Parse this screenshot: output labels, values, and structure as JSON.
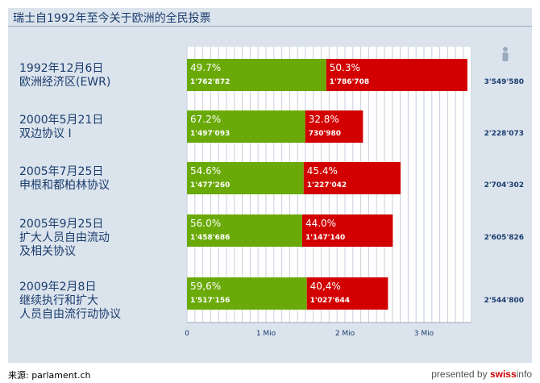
{
  "title": "瑞士自1992年至今关于欧洲的全民投票",
  "source": "来源: parlament.ch",
  "brand": {
    "prefix": "presented by ",
    "swiss": "swiss",
    "info": "info"
  },
  "colors": {
    "yes": "#6aaa08",
    "no": "#d20000",
    "panel": "#dbe3ec",
    "text": "#1a3d6e"
  },
  "icons": {
    "total": "person-icon"
  },
  "chart_data": {
    "type": "bar",
    "stacked": true,
    "orientation": "horizontal",
    "grid": true,
    "xlim": [
      0,
      3.6
    ],
    "x_ticks": [
      {
        "value": 0,
        "label": "0"
      },
      {
        "value": 1,
        "label": "1 Mio"
      },
      {
        "value": 2,
        "label": "2 Mio"
      },
      {
        "value": 3,
        "label": "3 Mio"
      }
    ],
    "votes": [
      {
        "lines": [
          "1992年12月6日",
          "欧洲经济区(EWR)"
        ],
        "yes_pct": "49.7%",
        "yes_count": "1'762'872",
        "yes_value": 1762872,
        "no_pct": "50.3%",
        "no_count": "1'786'708",
        "no_value": 1786708,
        "total": "3'549'580"
      },
      {
        "lines": [
          "2000年5月21日",
          "双边协议 I"
        ],
        "yes_pct": "67.2%",
        "yes_count": "1'497'093",
        "yes_value": 1497093,
        "no_pct": "32.8%",
        "no_count": "730'980",
        "no_value": 730980,
        "total": "2'228'073"
      },
      {
        "lines": [
          "2005年7月25日",
          "申根和都柏林协议"
        ],
        "yes_pct": "54.6%",
        "yes_count": "1'477'260",
        "yes_value": 1477260,
        "no_pct": "45.4%",
        "no_count": "1'227'042",
        "no_value": 1227042,
        "total": "2'704'302"
      },
      {
        "lines": [
          "2005年9月25日",
          "扩大人员自由流动",
          "及相关协议"
        ],
        "yes_pct": "56.0%",
        "yes_count": "1'458'686",
        "yes_value": 1458686,
        "no_pct": "44.0%",
        "no_count": "1'147'140",
        "no_value": 1147140,
        "total": "2'605'826"
      },
      {
        "lines": [
          "2009年2月8日",
          "继续执行和扩大",
          "人员自由流行动协议"
        ],
        "yes_pct": "59,6%",
        "yes_count": "1'517'156",
        "yes_value": 1517156,
        "no_pct": "40,4%",
        "no_count": "1'027'644",
        "no_value": 1027644,
        "total": "2'544'800"
      }
    ]
  }
}
